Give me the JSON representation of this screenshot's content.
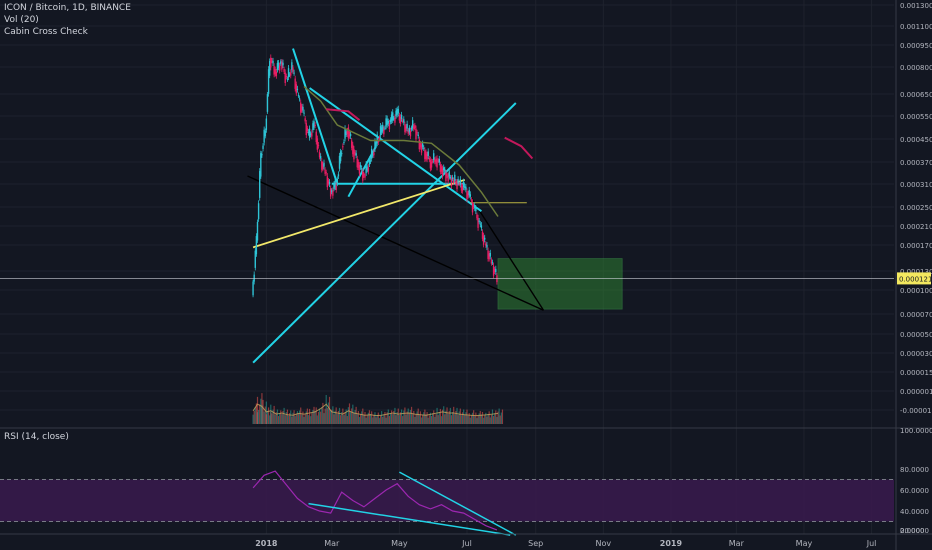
{
  "legend": {
    "title": "ICON / Bitcoin, 1D, BINANCE",
    "volume": "Vol (20)",
    "indicator": "Cabin Cross Check",
    "rsi": "RSI (14, close)"
  },
  "colors": {
    "background": "#131722",
    "grid": "#1e222d",
    "axis_text": "#b2b5be",
    "up": "#26a69a",
    "down": "#ef5350",
    "price_candle_up": "#2ec4d6",
    "price_candle_down": "#e91e63",
    "trend_cyan": "#22d3e6",
    "trend_yellow": "#f2e86a",
    "trend_black": "#000000",
    "ma_olive": "#6b7a3a",
    "ma_red": "#c2185b",
    "rsi_line": "#9c27b0",
    "rsi_band": "#3a1a4d",
    "zone_green": "#2e7d32",
    "current_price_bg": "#f3e85f"
  },
  "current_price": "0.0001218",
  "chart_data": [
    {
      "type": "line",
      "title": "ICON / Bitcoin, 1D, BINANCE",
      "series_kind": "candlestick",
      "x_tick_labels": [
        "2018",
        "Mar",
        "May",
        "Jul",
        "Sep",
        "Nov",
        "2019",
        "Mar",
        "May",
        "Jul"
      ],
      "y_tick_labels": [
        "0.0013000",
        "0.0011000",
        "0.0009500",
        "0.0008000",
        "0.0006500",
        "0.0005500",
        "0.0004500",
        "0.0003700",
        "0.0003100",
        "0.0002500",
        "0.0002100",
        "0.0001700",
        "0.0001300",
        "0.0001000",
        "0.0000700",
        "0.0000500",
        "0.0000300",
        "0.0000150",
        "0.0000010",
        "-0.0000130"
      ],
      "y_scale": "log",
      "price_path": [
        [
          "2017-12-20",
          0.000105
        ],
        [
          "2017-12-24",
          0.00017
        ],
        [
          "2017-12-28",
          0.00036
        ],
        [
          "2018-01-01",
          0.00045
        ],
        [
          "2018-01-05",
          0.00085
        ],
        [
          "2018-01-10",
          0.00075
        ],
        [
          "2018-01-15",
          0.00082
        ],
        [
          "2018-01-20",
          0.0007
        ],
        [
          "2018-01-25",
          0.00078
        ],
        [
          "2018-01-30",
          0.00061
        ],
        [
          "2018-02-04",
          0.00052
        ],
        [
          "2018-02-09",
          0.00042
        ],
        [
          "2018-02-14",
          0.00047
        ],
        [
          "2018-02-19",
          0.00035
        ],
        [
          "2018-02-24",
          0.00031
        ],
        [
          "2018-03-01",
          0.00026
        ],
        [
          "2018-03-06",
          0.00028
        ],
        [
          "2018-03-11",
          0.00039
        ],
        [
          "2018-03-16",
          0.00046
        ],
        [
          "2018-03-21",
          0.00038
        ],
        [
          "2018-03-26",
          0.00033
        ],
        [
          "2018-03-31",
          0.0003
        ],
        [
          "2018-04-05",
          0.00034
        ],
        [
          "2018-04-10",
          0.00039
        ],
        [
          "2018-04-15",
          0.00044
        ],
        [
          "2018-04-20",
          0.00047
        ],
        [
          "2018-04-25",
          0.00049
        ],
        [
          "2018-04-30",
          0.00052
        ],
        [
          "2018-05-05",
          0.00048
        ],
        [
          "2018-05-10",
          0.00044
        ],
        [
          "2018-05-15",
          0.00047
        ],
        [
          "2018-05-20",
          0.0004
        ],
        [
          "2018-05-25",
          0.00037
        ],
        [
          "2018-05-30",
          0.00034
        ],
        [
          "2018-06-04",
          0.00035
        ],
        [
          "2018-06-09",
          0.00032
        ],
        [
          "2018-06-14",
          0.0003
        ],
        [
          "2018-06-19",
          0.00029
        ],
        [
          "2018-06-24",
          0.00028
        ],
        [
          "2018-06-29",
          0.00027
        ],
        [
          "2018-07-04",
          0.00025
        ],
        [
          "2018-07-09",
          0.00022
        ],
        [
          "2018-07-14",
          0.00019
        ],
        [
          "2018-07-19",
          0.00016
        ],
        [
          "2018-07-24",
          0.00014
        ],
        [
          "2018-07-29",
          0.0001218
        ]
      ],
      "moving_average_olive": [
        [
          "2018-02-04",
          0.00066
        ],
        [
          "2018-02-19",
          0.00058
        ],
        [
          "2018-03-06",
          0.00047
        ],
        [
          "2018-04-05",
          0.00041
        ],
        [
          "2018-05-05",
          0.00041
        ],
        [
          "2018-05-30",
          0.0004
        ],
        [
          "2018-06-24",
          0.00033
        ],
        [
          "2018-07-14",
          0.00026
        ],
        [
          "2018-07-29",
          0.00021
        ]
      ],
      "moving_average_red_segments": [
        [
          [
            "2018-02-24",
            0.00054
          ],
          [
            "2018-03-16",
            0.00053
          ],
          [
            "2018-03-26",
            0.00049
          ]
        ],
        [
          [
            "2018-08-04",
            0.00042
          ],
          [
            "2018-08-19",
            0.00039
          ],
          [
            "2018-08-29",
            0.00035
          ]
        ]
      ],
      "drawings": {
        "cyan_lines": [
          [
            [
              "2017-12-20",
              5.8e-05
            ],
            [
              "2018-08-14",
              0.00057
            ]
          ],
          [
            [
              "2018-01-25",
              0.00092
            ],
            [
              "2018-03-06",
              0.00028
            ]
          ],
          [
            [
              "2018-02-09",
              0.00065
            ],
            [
              "2018-07-14",
              0.00022
            ]
          ],
          [
            [
              "2018-03-16",
              0.00025
            ],
            [
              "2018-04-10",
              0.00039
            ]
          ],
          [
            [
              "2018-03-01",
              0.00028
            ],
            [
              "2018-06-29",
              0.00028
            ]
          ]
        ],
        "yellow_lines": [
          [
            [
              "2017-12-20",
              0.00016
            ],
            [
              "2018-06-29",
              0.00029
            ]
          ]
        ],
        "thin_yellow_level": [
          [
            "2018-07-04",
            0.000237
          ],
          [
            "2018-08-24",
            0.000237
          ]
        ],
        "black_lines": [
          [
            [
              "2017-12-15",
              0.0003
            ],
            [
              "2018-09-08",
              9.2e-05
            ]
          ],
          [
            [
              "2018-06-29",
              0.00027
            ],
            [
              "2018-09-08",
              9.2e-05
            ]
          ]
        ],
        "green_zone": {
          "from": "2018-07-29",
          "to": "2018-11-18",
          "high": 0.000145,
          "low": 9.3e-05
        }
      },
      "volume_series_name": "Vol (20)",
      "volume_range": "relative",
      "volume_profile": [
        0.6,
        0.9,
        0.8,
        0.55,
        0.6,
        0.45,
        0.5,
        0.42,
        0.4,
        0.48,
        0.45,
        0.5,
        0.55,
        0.7,
        0.9,
        0.55,
        0.5,
        0.45,
        0.6,
        0.5,
        0.45,
        0.4,
        0.42,
        0.38,
        0.4,
        0.45,
        0.5,
        0.45,
        0.48,
        0.5,
        0.45,
        0.42,
        0.4,
        0.45,
        0.5,
        0.55,
        0.5,
        0.5,
        0.45,
        0.42,
        0.4,
        0.38,
        0.4,
        0.42,
        0.45,
        0.48
      ]
    },
    {
      "type": "line",
      "title": "RSI (14, close)",
      "y_tick_labels": [
        "100.0000",
        "80.0000",
        "60.0000",
        "40.0000",
        "20.0000",
        "0.0000"
      ],
      "ylim": [
        0,
        100
      ],
      "band": [
        30,
        70
      ],
      "rsi_path": [
        [
          "2017-12-20",
          62
        ],
        [
          "2017-12-30",
          74
        ],
        [
          "2018-01-09",
          78
        ],
        [
          "2018-01-19",
          65
        ],
        [
          "2018-01-29",
          52
        ],
        [
          "2018-02-08",
          44
        ],
        [
          "2018-02-18",
          40
        ],
        [
          "2018-02-28",
          38
        ],
        [
          "2018-03-10",
          58
        ],
        [
          "2018-03-20",
          50
        ],
        [
          "2018-03-30",
          44
        ],
        [
          "2018-04-09",
          52
        ],
        [
          "2018-04-19",
          60
        ],
        [
          "2018-04-29",
          66
        ],
        [
          "2018-05-09",
          54
        ],
        [
          "2018-05-19",
          46
        ],
        [
          "2018-05-29",
          42
        ],
        [
          "2018-06-08",
          46
        ],
        [
          "2018-06-18",
          40
        ],
        [
          "2018-06-28",
          38
        ],
        [
          "2018-07-08",
          32
        ],
        [
          "2018-07-18",
          26
        ],
        [
          "2018-07-28",
          22
        ]
      ],
      "drawings": {
        "cyan_lines": [
          [
            [
              "2018-02-08",
              47
            ],
            [
              "2018-08-09",
              17
            ]
          ],
          [
            [
              "2018-05-01",
              77
            ],
            [
              "2018-08-14",
              17
            ]
          ]
        ]
      }
    }
  ]
}
